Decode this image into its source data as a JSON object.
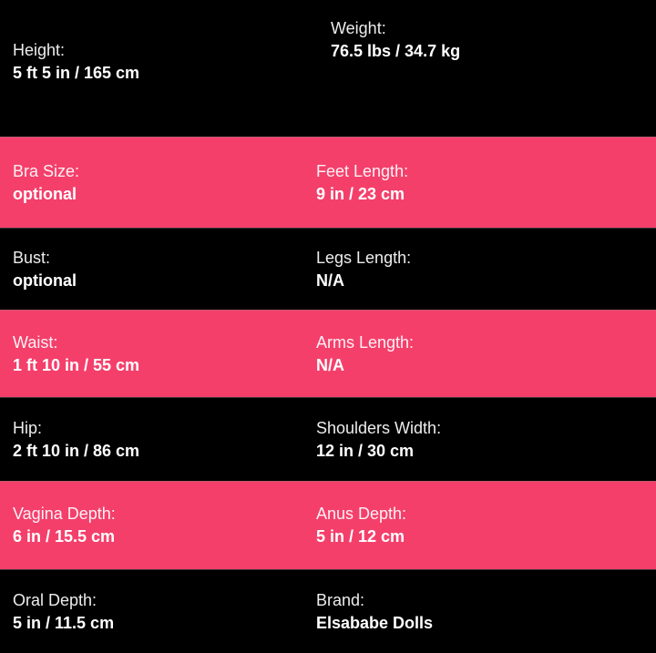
{
  "page": {
    "background_color": "#000000",
    "accent_pink": "#f43f6b",
    "text_color": "#ffffff"
  },
  "spec_table": {
    "rows": [
      {
        "variant": "dark",
        "cells": [
          {
            "label": "Height:",
            "value": "5 ft 5 in / 165 cm"
          },
          {
            "label": "Weight:",
            "value": "76.5 lbs / 34.7 kg"
          }
        ]
      },
      {
        "variant": "pink",
        "cells": [
          {
            "label": "Bra Size:",
            "value": "optional"
          },
          {
            "label": "Feet Length:",
            "value": "9 in / 23 cm"
          }
        ]
      },
      {
        "variant": "dark",
        "cells": [
          {
            "label": "Bust:",
            "value": "optional"
          },
          {
            "label": "Legs Length:",
            "value": "N/A"
          }
        ]
      },
      {
        "variant": "pink",
        "cells": [
          {
            "label": "Waist:",
            "value": "1 ft 10 in / 55 cm"
          },
          {
            "label": "Arms Length:",
            "value": "N/A"
          }
        ]
      },
      {
        "variant": "dark",
        "cells": [
          {
            "label": "Hip:",
            "value": "2 ft 10 in / 86 cm"
          },
          {
            "label": "Shoulders Width:",
            "value": "12 in / 30 cm"
          }
        ]
      },
      {
        "variant": "pink",
        "cells": [
          {
            "label": "Vagina Depth:",
            "value": "6 in / 15.5 cm"
          },
          {
            "label": "Anus Depth:",
            "value": "5 in / 12 cm"
          }
        ]
      },
      {
        "variant": "dark",
        "cells": [
          {
            "label": "Oral Depth:",
            "value": "5 in / 11.5 cm"
          },
          {
            "label": "Brand:",
            "value": "Elsababe Dolls"
          }
        ]
      }
    ]
  }
}
